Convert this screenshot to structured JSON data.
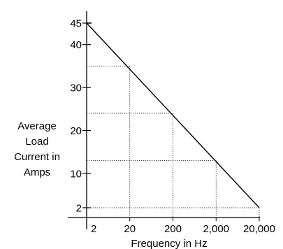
{
  "chart_data": {
    "type": "line",
    "title": "",
    "xlabel": "Frequency in Hz",
    "ylabel_lines": [
      "Average",
      "Load",
      "Current in",
      "Amps"
    ],
    "x_scale": "log",
    "x_tick_labels": [
      "2",
      "20",
      "200",
      "2,000",
      "20,000"
    ],
    "x_tick_values": [
      2,
      20,
      200,
      2000,
      20000
    ],
    "y_tick_labels": [
      "2",
      "10",
      "20",
      "30",
      "40",
      "45"
    ],
    "y_tick_values": [
      2,
      10,
      20,
      30,
      40,
      45
    ],
    "ylim": [
      0,
      47
    ],
    "grid": false,
    "series": [
      {
        "x": [
          2,
          20000
        ],
        "y": [
          45,
          2
        ]
      }
    ],
    "reference_points": [
      {
        "x": 20,
        "y": 35
      },
      {
        "x": 200,
        "y": 24
      },
      {
        "x": 2000,
        "y": 13
      },
      {
        "x": 20000,
        "y": 2
      }
    ]
  }
}
